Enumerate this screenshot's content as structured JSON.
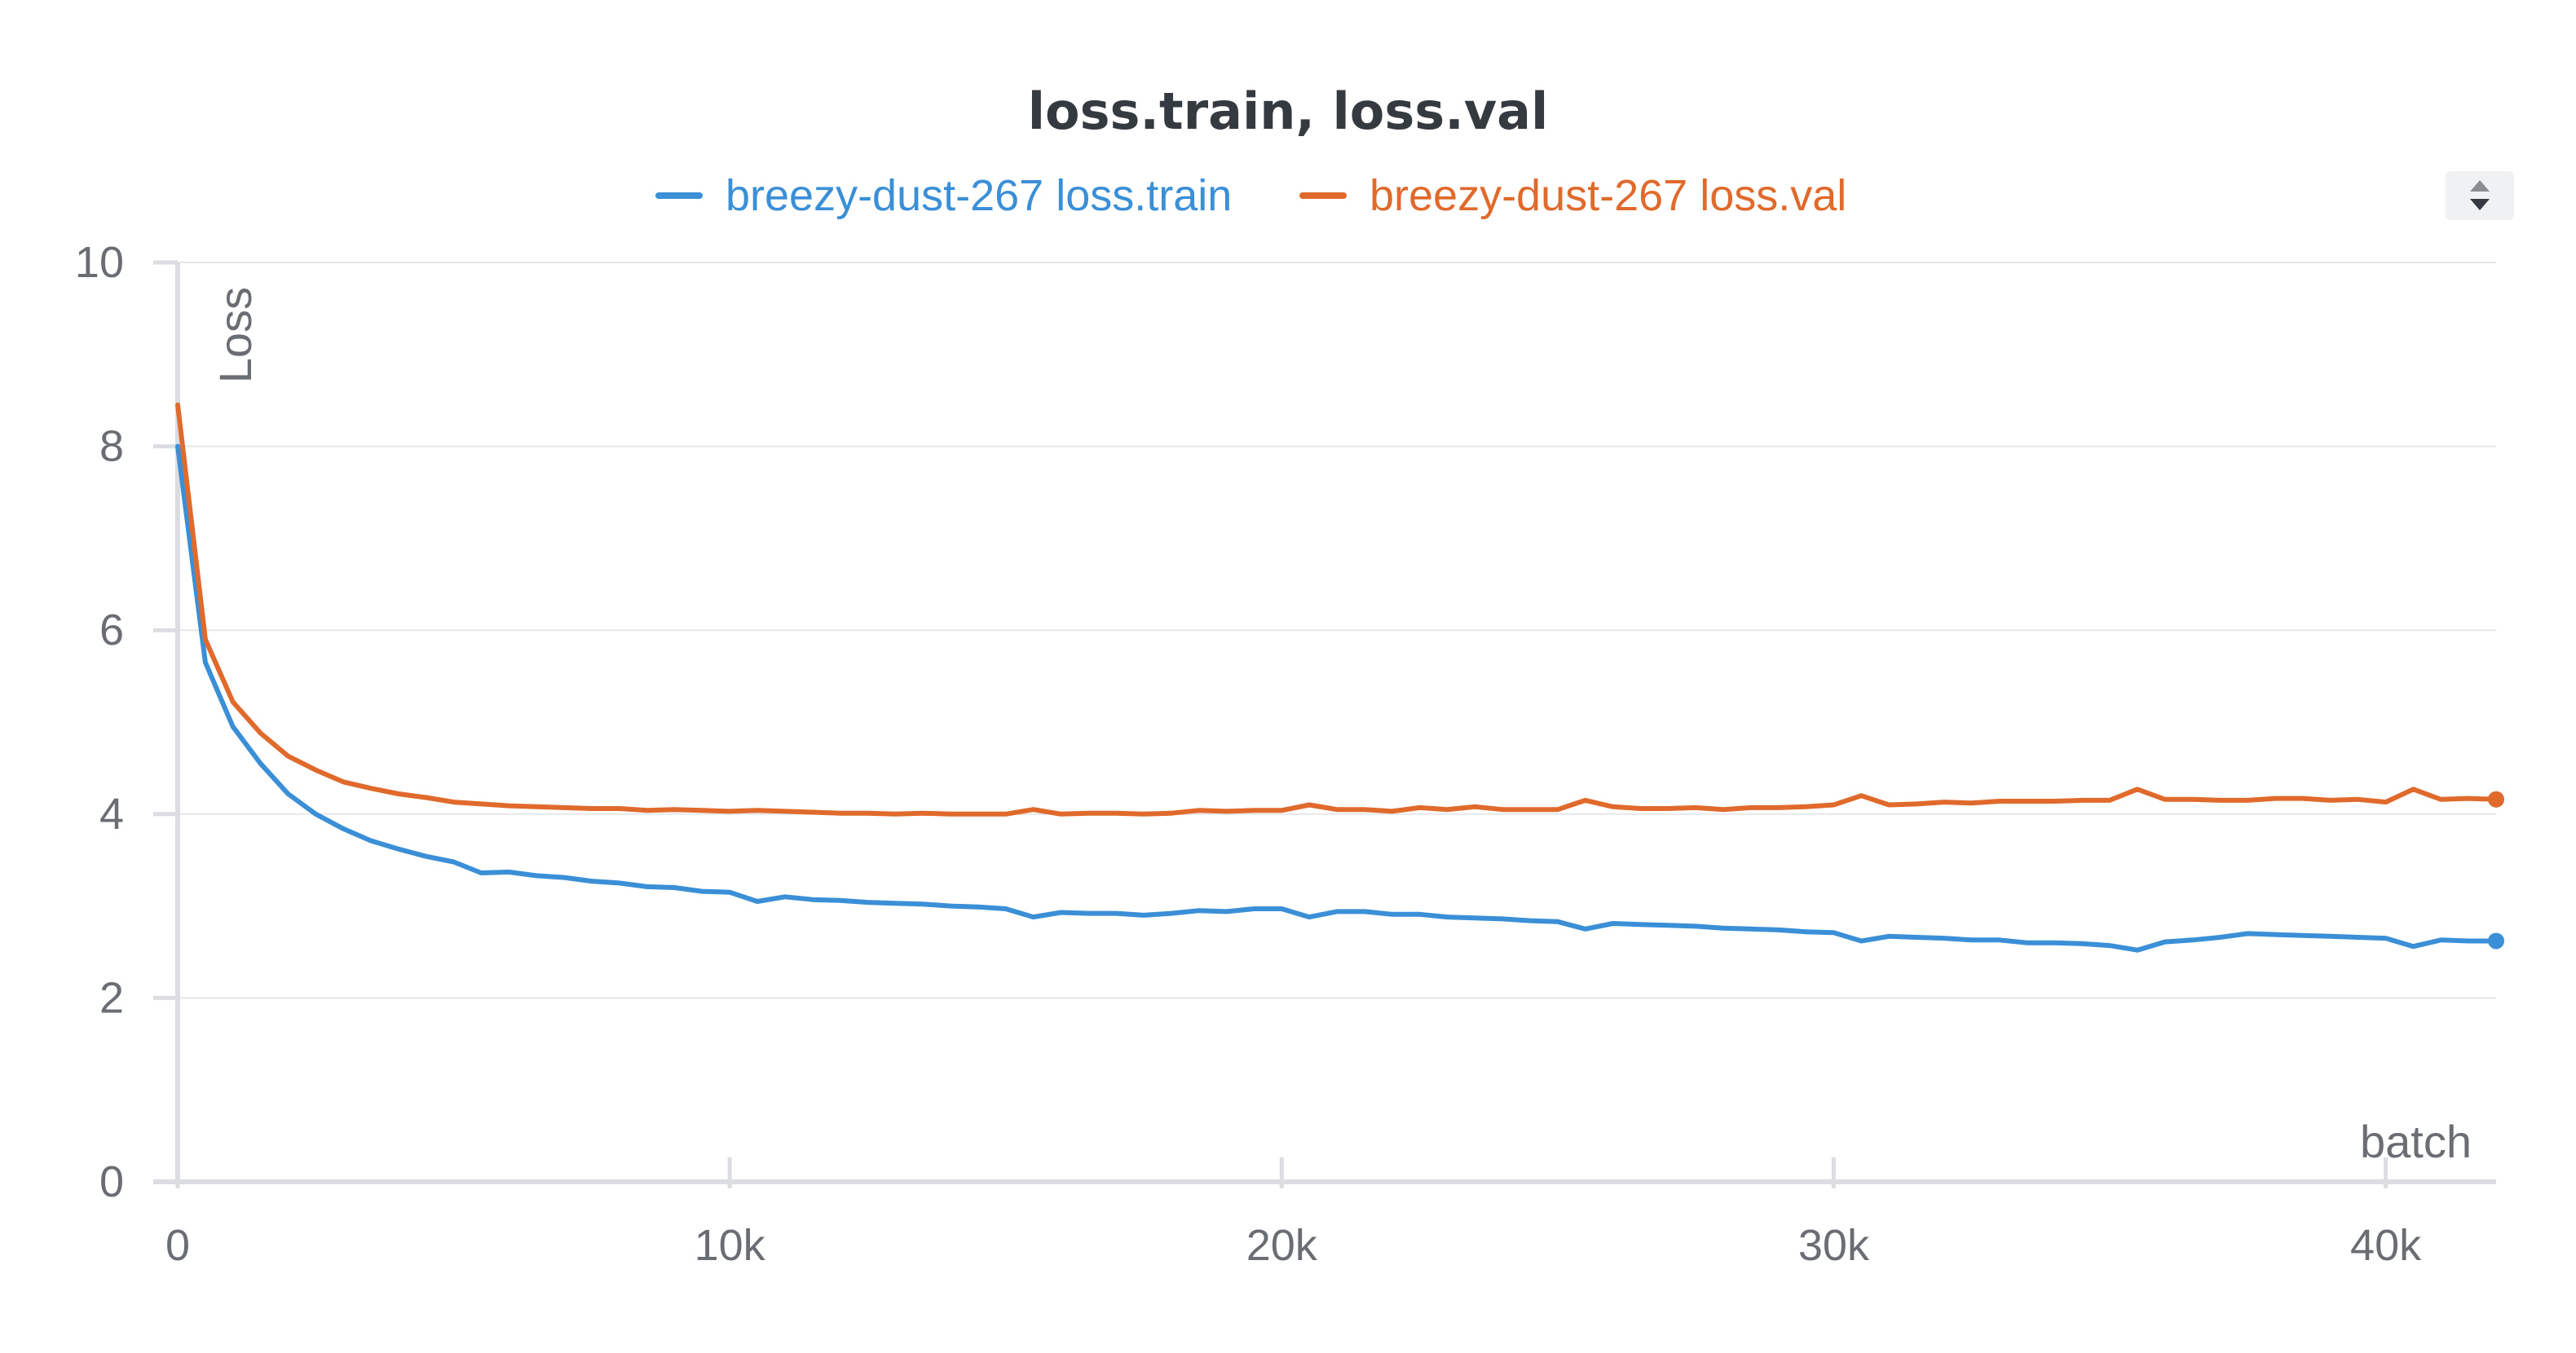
{
  "chart_data": {
    "type": "line",
    "title": "loss.train, loss.val",
    "xlabel": "batch",
    "ylabel": "Loss",
    "xlim": [
      0,
      42000
    ],
    "ylim": [
      0,
      10
    ],
    "x_ticks": [
      0,
      10000,
      20000,
      30000,
      40000
    ],
    "x_tick_labels": [
      "0",
      "10k",
      "20k",
      "30k",
      "40k"
    ],
    "y_ticks": [
      0,
      2,
      4,
      6,
      8,
      10
    ],
    "y_tick_labels": [
      "0",
      "2",
      "4",
      "6",
      "8",
      "10"
    ],
    "grid": "horizontal",
    "legend": "top-center",
    "series": [
      {
        "name": "breezy-dust-267 loss.train",
        "color": "#3a8fd6",
        "x": [
          0,
          500,
          1000,
          1500,
          2000,
          2500,
          3000,
          3500,
          4000,
          4500,
          5000,
          5500,
          6000,
          6500,
          7000,
          7500,
          8000,
          8500,
          9000,
          9500,
          10000,
          10500,
          11000,
          11500,
          12000,
          12500,
          13000,
          13500,
          14000,
          14500,
          15000,
          15500,
          16000,
          16500,
          17000,
          17500,
          18000,
          18500,
          19000,
          19500,
          20000,
          20500,
          21000,
          21500,
          22000,
          22500,
          23000,
          23500,
          24000,
          24500,
          25000,
          25500,
          26000,
          26500,
          27000,
          27500,
          28000,
          28500,
          29000,
          29500,
          30000,
          30500,
          31000,
          31500,
          32000,
          32500,
          33000,
          33500,
          34000,
          34500,
          35000,
          35500,
          36000,
          36500,
          37000,
          37500,
          38000,
          38500,
          39000,
          39500,
          40000,
          40500,
          41000,
          41500,
          42000
        ],
        "values": [
          8.0,
          5.65,
          4.95,
          4.55,
          4.22,
          4.0,
          3.84,
          3.71,
          3.62,
          3.54,
          3.48,
          3.36,
          3.37,
          3.33,
          3.31,
          3.27,
          3.25,
          3.21,
          3.2,
          3.16,
          3.15,
          3.05,
          3.1,
          3.07,
          3.06,
          3.04,
          3.03,
          3.02,
          3.0,
          2.99,
          2.97,
          2.88,
          2.93,
          2.92,
          2.92,
          2.9,
          2.92,
          2.95,
          2.94,
          2.97,
          2.97,
          2.88,
          2.94,
          2.94,
          2.91,
          2.91,
          2.88,
          2.87,
          2.86,
          2.84,
          2.83,
          2.75,
          2.81,
          2.8,
          2.79,
          2.78,
          2.76,
          2.75,
          2.74,
          2.72,
          2.71,
          2.62,
          2.67,
          2.66,
          2.65,
          2.63,
          2.63,
          2.6,
          2.6,
          2.59,
          2.57,
          2.52,
          2.61,
          2.63,
          2.66,
          2.7,
          2.69,
          2.68,
          2.67,
          2.66,
          2.65,
          2.56,
          2.63,
          2.62,
          2.62
        ]
      },
      {
        "name": "breezy-dust-267 loss.val",
        "color": "#e06a2c",
        "x": [
          0,
          500,
          1000,
          1500,
          2000,
          2500,
          3000,
          3500,
          4000,
          4500,
          5000,
          5500,
          6000,
          6500,
          7000,
          7500,
          8000,
          8500,
          9000,
          9500,
          10000,
          10500,
          11000,
          11500,
          12000,
          12500,
          13000,
          13500,
          14000,
          14500,
          15000,
          15500,
          16000,
          16500,
          17000,
          17500,
          18000,
          18500,
          19000,
          19500,
          20000,
          20500,
          21000,
          21500,
          22000,
          22500,
          23000,
          23500,
          24000,
          24500,
          25000,
          25500,
          26000,
          26500,
          27000,
          27500,
          28000,
          28500,
          29000,
          29500,
          30000,
          30500,
          31000,
          31500,
          32000,
          32500,
          33000,
          33500,
          34000,
          34500,
          35000,
          35500,
          36000,
          36500,
          37000,
          37500,
          38000,
          38500,
          39000,
          39500,
          40000,
          40500,
          41000,
          41500,
          42000
        ],
        "values": [
          8.45,
          5.9,
          5.22,
          4.88,
          4.63,
          4.48,
          4.35,
          4.28,
          4.22,
          4.18,
          4.13,
          4.11,
          4.09,
          4.08,
          4.07,
          4.06,
          4.06,
          4.04,
          4.05,
          4.04,
          4.03,
          4.04,
          4.03,
          4.02,
          4.01,
          4.01,
          4.0,
          4.01,
          4.0,
          4.0,
          4.0,
          4.05,
          4.0,
          4.01,
          4.01,
          4.0,
          4.01,
          4.04,
          4.03,
          4.04,
          4.04,
          4.1,
          4.05,
          4.05,
          4.03,
          4.07,
          4.05,
          4.08,
          4.05,
          4.05,
          4.05,
          4.15,
          4.08,
          4.06,
          4.06,
          4.07,
          4.05,
          4.07,
          4.07,
          4.08,
          4.1,
          4.2,
          4.1,
          4.11,
          4.13,
          4.12,
          4.14,
          4.14,
          4.14,
          4.15,
          4.15,
          4.27,
          4.16,
          4.16,
          4.15,
          4.15,
          4.17,
          4.17,
          4.15,
          4.16,
          4.13,
          4.27,
          4.16,
          4.17,
          4.16
        ]
      }
    ]
  },
  "controls": {
    "legend_scroll_icon": "sort-arrows-icon"
  }
}
